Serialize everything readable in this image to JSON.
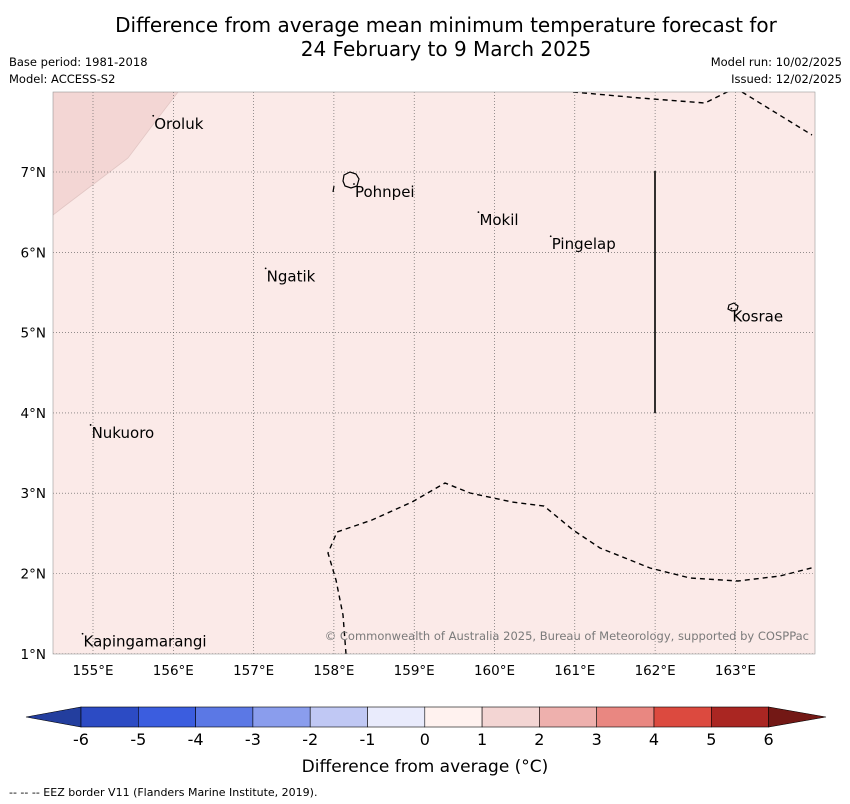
{
  "title": {
    "line1": "Difference from average mean minimum temperature forecast for",
    "line2": "24 February to 9 March 2025"
  },
  "meta": {
    "base_period": "Base period: 1981-2018",
    "model": "Model: ACCESS-S2",
    "model_run": "Model run: 10/02/2025",
    "issued": "Issued: 12/02/2025"
  },
  "map": {
    "background_color": "#fbeae8",
    "warm_region_color": "#f3d6d4",
    "lon_ticks": [
      "155°E",
      "156°E",
      "157°E",
      "158°E",
      "159°E",
      "160°E",
      "161°E",
      "162°E",
      "163°E"
    ],
    "lat_ticks": [
      "7°N",
      "6°N",
      "5°N",
      "4°N",
      "3°N",
      "2°N",
      "1°N"
    ],
    "places": [
      {
        "name": "Oroluk",
        "lon": 155.75,
        "lat": 7.7
      },
      {
        "name": "Pohnpei",
        "lon": 158.25,
        "lat": 6.85
      },
      {
        "name": "Mokil",
        "lon": 159.8,
        "lat": 6.5
      },
      {
        "name": "Pingelap",
        "lon": 160.7,
        "lat": 6.2
      },
      {
        "name": "Ngatik",
        "lon": 157.15,
        "lat": 5.8
      },
      {
        "name": "Kosrae",
        "lon": 162.95,
        "lat": 5.3
      },
      {
        "name": "Nukuoro",
        "lon": 154.97,
        "lat": 3.85
      },
      {
        "name": "Kapingamarangi",
        "lon": 154.87,
        "lat": 1.25
      }
    ],
    "copyright": "© Commonwealth of Australia 2025, Bureau of Meteorology, supported by COSPPac"
  },
  "colorbar": {
    "ticks": [
      "-6",
      "-5",
      "-4",
      "-3",
      "-2",
      "-1",
      "0",
      "1",
      "2",
      "3",
      "4",
      "5",
      "6"
    ],
    "colors": [
      "#233e9e",
      "#2c4bc4",
      "#3b5ddf",
      "#5b78e5",
      "#8a9ded",
      "#c0c8f4",
      "#e9ebfc",
      "#fff2ef",
      "#f3d5d3",
      "#eeb0ad",
      "#e98781",
      "#dc4a3f",
      "#aa2622",
      "#731815"
    ],
    "label": "Difference from average (°C)"
  },
  "footer": "--  --  -- EEZ border V11 (Flanders Marine Institute, 2019)."
}
